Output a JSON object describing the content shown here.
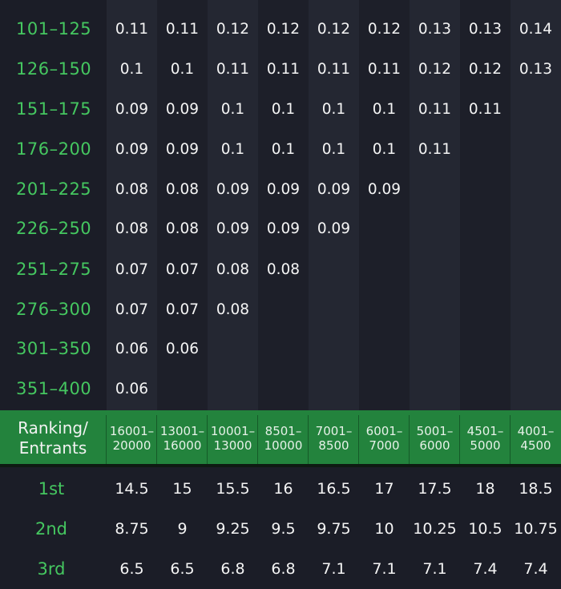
{
  "ranking_rows": [
    {
      "range": "101–125",
      "values": [
        "0.11",
        "0.11",
        "0.12",
        "0.12",
        "0.12",
        "0.12",
        "0.13",
        "0.13",
        "0.14"
      ]
    },
    {
      "range": "126–150",
      "values": [
        "0.1",
        "0.1",
        "0.11",
        "0.11",
        "0.11",
        "0.11",
        "0.12",
        "0.12",
        "0.13"
      ]
    },
    {
      "range": "151–175",
      "values": [
        "0.09",
        "0.09",
        "0.1",
        "0.1",
        "0.1",
        "0.1",
        "0.11",
        "0.11",
        ""
      ]
    },
    {
      "range": "176–200",
      "values": [
        "0.09",
        "0.09",
        "0.1",
        "0.1",
        "0.1",
        "0.1",
        "0.11",
        "",
        ""
      ]
    },
    {
      "range": "201–225",
      "values": [
        "0.08",
        "0.08",
        "0.09",
        "0.09",
        "0.09",
        "0.09",
        "",
        "",
        ""
      ]
    },
    {
      "range": "226–250",
      "values": [
        "0.08",
        "0.08",
        "0.09",
        "0.09",
        "0.09",
        "",
        "",
        "",
        ""
      ]
    },
    {
      "range": "251–275",
      "values": [
        "0.07",
        "0.07",
        "0.08",
        "0.08",
        "",
        "",
        "",
        "",
        ""
      ]
    },
    {
      "range": "276–300",
      "values": [
        "0.07",
        "0.07",
        "0.08",
        "",
        "",
        "",
        "",
        "",
        ""
      ]
    },
    {
      "range": "301–350",
      "values": [
        "0.06",
        "0.06",
        "",
        "",
        "",
        "",
        "",
        "",
        ""
      ]
    },
    {
      "range": "351–400",
      "values": [
        "0.06",
        "",
        "",
        "",
        "",
        "",
        "",
        "",
        ""
      ]
    }
  ],
  "header": {
    "label_line1": "Ranking/",
    "label_line2": "Entrants",
    "columns": [
      {
        "line1": "16001–",
        "line2": "20000"
      },
      {
        "line1": "13001–",
        "line2": "16000"
      },
      {
        "line1": "10001–",
        "line2": "13000"
      },
      {
        "line1": "8501–",
        "line2": "10000"
      },
      {
        "line1": "7001–",
        "line2": "8500"
      },
      {
        "line1": "6001–",
        "line2": "7000"
      },
      {
        "line1": "5001–",
        "line2": "6000"
      },
      {
        "line1": "4501–",
        "line2": "5000"
      },
      {
        "line1": "4001–",
        "line2": "4500"
      }
    ]
  },
  "prize_rows": [
    {
      "place": "1st",
      "values": [
        "14.5",
        "15",
        "15.5",
        "16",
        "16.5",
        "17",
        "17.5",
        "18",
        "18.5"
      ]
    },
    {
      "place": "2nd",
      "values": [
        "8.75",
        "9",
        "9.25",
        "9.5",
        "9.75",
        "10",
        "10.25",
        "10.5",
        "10.75"
      ]
    },
    {
      "place": "3rd",
      "values": [
        "6.5",
        "6.5",
        "6.8",
        "6.8",
        "7.1",
        "7.1",
        "7.1",
        "7.4",
        "7.4"
      ]
    }
  ],
  "colors": {
    "background": "#1b1d27",
    "accent_green": "#45c760",
    "header_band": "#23833d"
  }
}
